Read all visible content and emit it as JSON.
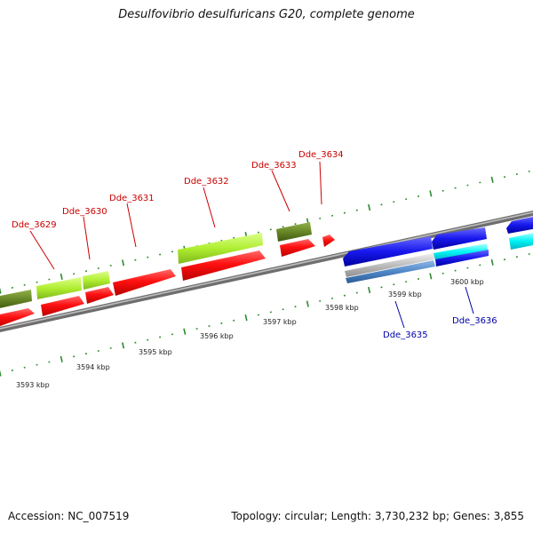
{
  "title": "Desulfovibrio desulfuricans G20, complete genome",
  "footer": {
    "accession": "Accession: NC_007519",
    "summary": "Topology: circular; Length: 3,730,232 bp; Genes: 3,855"
  },
  "scale_labels": [
    "3593 kbp",
    "3594 kbp",
    "3595 kbp",
    "3596 kbp",
    "3597 kbp",
    "3598 kbp",
    "3599 kbp",
    "3600 kbp"
  ],
  "gene_labels": [
    {
      "text": "Dde_3629",
      "strand": "top"
    },
    {
      "text": "Dde_3630",
      "strand": "top"
    },
    {
      "text": "Dde_3631",
      "strand": "top"
    },
    {
      "text": "Dde_3632",
      "strand": "top"
    },
    {
      "text": "Dde_3633",
      "strand": "top"
    },
    {
      "text": "Dde_3634",
      "strand": "top"
    },
    {
      "text": "Dde_3635",
      "strand": "bottom"
    },
    {
      "text": "Dde_3636",
      "strand": "bottom"
    }
  ],
  "colors": {
    "top_label": "#cc0000",
    "bottom_label": "#0000aa",
    "backbone": "#8a8a8a",
    "tick": "#2e8b2e",
    "cds_forward": "#ff1a1a",
    "gene_forward": "#b6f23c",
    "gene_olive": "#6b8a28",
    "cds_reverse": "#1414e6",
    "gene_cyan": "#00ffff",
    "gene_grey": "#b9b9b9",
    "gene_steel": "#4f86c6"
  }
}
